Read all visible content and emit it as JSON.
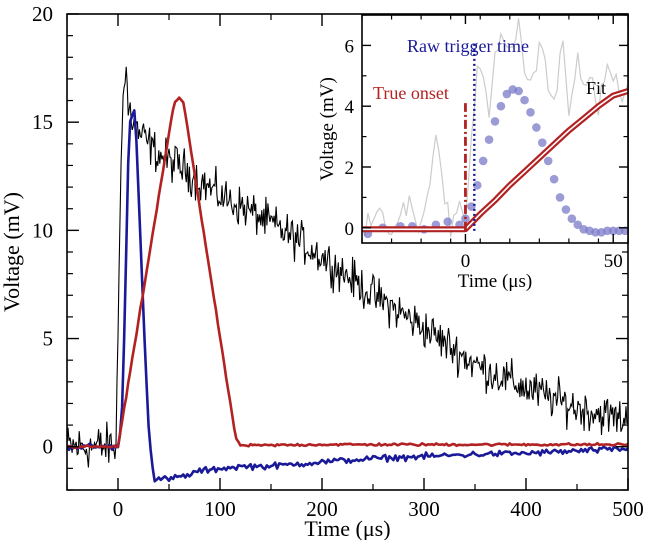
{
  "chart_data": [
    {
      "type": "line",
      "xlabel": "Time (μs)",
      "ylabel": "Voltage (mV)",
      "xlim": [
        -50,
        500
      ],
      "ylim": [
        -2,
        20
      ],
      "x_ticks": [
        0,
        100,
        200,
        300,
        400,
        500
      ],
      "x_tick_labels": [
        "0",
        "100",
        "200",
        "300",
        "400",
        "500"
      ],
      "y_ticks": [
        0,
        5,
        10,
        15,
        20
      ],
      "y_tick_labels": [
        "0",
        "5",
        "10",
        "15",
        "20"
      ],
      "series": [
        {
          "color": "#000000",
          "style": "noisy raw trace",
          "x": [
            -50,
            -20,
            -2,
            0,
            3,
            5,
            8,
            10,
            12,
            15,
            20,
            30,
            40,
            50,
            60,
            80,
            100,
            125,
            150,
            175,
            200,
            250,
            300,
            350,
            400,
            450,
            500
          ],
          "y": [
            0,
            0,
            0,
            5,
            14,
            16,
            17.5,
            15.5,
            15.5,
            15,
            14.5,
            14,
            13.5,
            13.2,
            13,
            12.3,
            11.6,
            11,
            10.3,
            9.6,
            8.8,
            7.0,
            5.5,
            3.8,
            2.7,
            1.8,
            1.2
          ]
        },
        {
          "color": "#1a1a99",
          "style": "thick line",
          "x": [
            -50,
            0,
            3,
            5,
            8,
            10,
            12,
            15,
            17,
            20,
            25,
            30,
            35,
            40,
            50,
            60,
            70,
            80,
            90,
            100,
            125,
            150,
            200,
            250,
            300,
            350,
            400,
            450,
            500
          ],
          "y": [
            0,
            0,
            0.7,
            3,
            9,
            13,
            15,
            15.7,
            15.3,
            12,
            6,
            1,
            -1.5,
            -1.5,
            -1.5,
            -1.4,
            -1.3,
            -1.1,
            -1.1,
            -1.0,
            -0.9,
            -0.9,
            -0.7,
            -0.55,
            -0.45,
            -0.35,
            -0.3,
            -0.2,
            -0.1
          ]
        },
        {
          "color": "#b22222",
          "style": "thick line",
          "x": [
            -50,
            0,
            55,
            60,
            63,
            65,
            115,
            120,
            200,
            300,
            400,
            500
          ],
          "y": [
            0,
            0,
            15.9,
            16.1,
            16.0,
            15.7,
            0.5,
            0.05,
            0.1,
            0.1,
            0.1,
            0.1
          ]
        }
      ]
    },
    {
      "type": "line",
      "xlabel": "Time (μs)",
      "ylabel": "Voltage (mV)",
      "xlim": [
        -35,
        55
      ],
      "ylim": [
        -0.5,
        7
      ],
      "x_ticks": [
        0,
        50
      ],
      "x_tick_labels": [
        "0",
        "50"
      ],
      "y_ticks": [
        0,
        2,
        4,
        6
      ],
      "y_tick_labels": [
        "0",
        "2",
        "4",
        "6"
      ],
      "annotations": [
        {
          "text": "Raw trigger time",
          "color": "#1a1a99"
        },
        {
          "text": "True onset",
          "color": "#b22222"
        },
        {
          "text": "Fit",
          "color": "#000000"
        }
      ],
      "markers": [
        {
          "x": 0,
          "color": "#b22222",
          "style": "dash-dot vertical line"
        },
        {
          "x": 3,
          "color": "#1a1a99",
          "style": "dotted vertical line"
        }
      ],
      "series": [
        {
          "color": "#cccccc",
          "style": "thin noisy raw trace",
          "x": [
            -35,
            -30,
            -25,
            -20,
            -15,
            -10,
            -5,
            -2,
            0,
            2,
            4,
            6,
            8,
            10,
            12,
            15,
            18,
            20,
            22,
            25,
            28,
            30,
            33,
            35,
            38,
            40,
            43,
            45,
            48,
            50,
            53,
            55
          ],
          "y": [
            0,
            0.5,
            -0.2,
            0.9,
            0,
            2.8,
            0,
            0.6,
            0.2,
            3.0,
            5.0,
            5.3,
            4.0,
            5.7,
            6.0,
            5.5,
            7.0,
            5.2,
            4.5,
            6.0,
            5.0,
            4.2,
            5.9,
            3.8,
            5.6,
            4.5,
            5.0,
            3.9,
            5.4,
            4.8,
            4.3,
            4.6
          ]
        },
        {
          "color": "#7a7ac8",
          "style": "scatter dots",
          "x": [
            -33,
            -28,
            -22,
            -18,
            -14,
            -10,
            -6,
            -2,
            0,
            2,
            4,
            6,
            8,
            10,
            12,
            14,
            16,
            18,
            20,
            22,
            24,
            26,
            28,
            30,
            32,
            34,
            36,
            38,
            40,
            42,
            44,
            46,
            48,
            50,
            52,
            54
          ],
          "y": [
            -0.2,
            0.0,
            0.05,
            0.05,
            -0.05,
            0.1,
            0.2,
            0.1,
            0.3,
            0.7,
            1.4,
            2.2,
            2.9,
            3.5,
            4.0,
            4.4,
            4.55,
            4.5,
            4.2,
            3.8,
            3.3,
            2.8,
            2.2,
            1.6,
            1.0,
            0.6,
            0.3,
            0.1,
            -0.05,
            -0.1,
            -0.15,
            -0.15,
            -0.1,
            -0.1,
            -0.1,
            -0.1
          ]
        },
        {
          "color": "#b22222",
          "style": "thick double line (fit)",
          "x": [
            -35,
            0,
            5,
            10,
            15,
            20,
            25,
            30,
            35,
            40,
            45,
            50,
            55
          ],
          "y": [
            -0.05,
            -0.05,
            0.45,
            0.9,
            1.4,
            1.85,
            2.3,
            2.75,
            3.2,
            3.6,
            4.0,
            4.35,
            4.5
          ]
        }
      ]
    }
  ]
}
